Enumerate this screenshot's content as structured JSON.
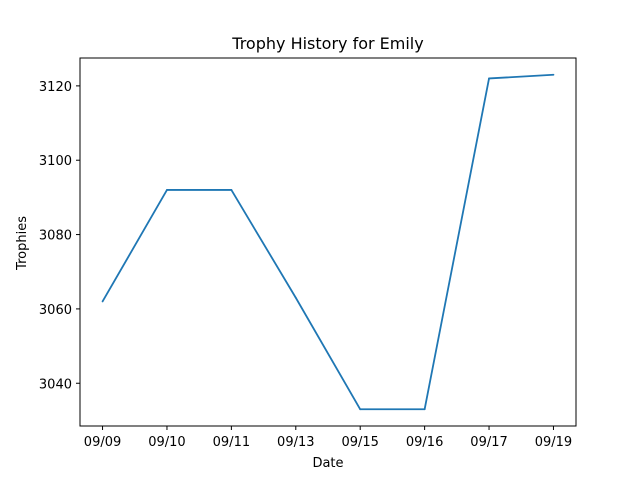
{
  "chart_data": {
    "type": "line",
    "title": "Trophy History for Emily",
    "xlabel": "Date",
    "ylabel": "Trophies",
    "categories": [
      "09/09",
      "09/10",
      "09/11",
      "09/13",
      "09/15",
      "09/16",
      "09/17",
      "09/19"
    ],
    "series": [
      {
        "values": [
          3062,
          3092,
          3092,
          3063,
          3033,
          3033,
          3122,
          3123
        ],
        "color": "#1f77b4"
      }
    ],
    "yticks": [
      3040,
      3060,
      3080,
      3100,
      3120
    ],
    "ylim": [
      3028.5,
      3127.5
    ],
    "grid": false,
    "legend": "none"
  }
}
